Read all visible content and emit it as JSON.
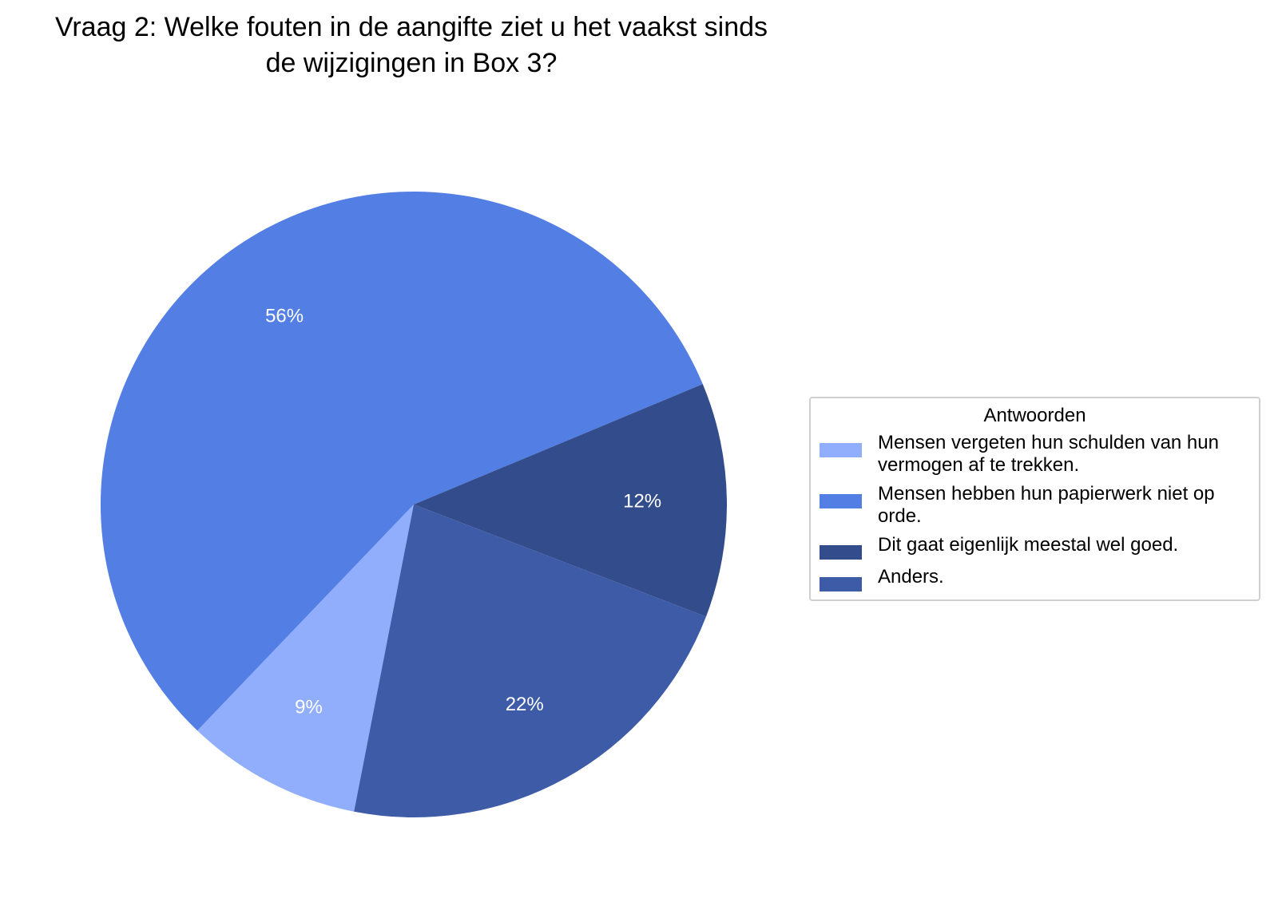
{
  "chart_data": {
    "type": "pie",
    "title": "Vraag 2: Welke fouten in de aangifte ziet u het vaakst sinds\nde wijzigingen in Box 3?",
    "legend_title": "Antwoorden",
    "legend_position": "right",
    "categories": [
      "Mensen vergeten hun schulden van hun vermogen af te trekken.",
      "Mensen hebben hun papierwerk niet op orde.",
      "Dit gaat eigenlijk meestal wel goed.",
      "Anders."
    ],
    "values": [
      9,
      56,
      12,
      22
    ],
    "value_labels": [
      "9%",
      "56%",
      "12%",
      "22%"
    ],
    "colors": [
      "#91aefd",
      "#537ee4",
      "#334c8c",
      "#3d5ba7"
    ]
  }
}
